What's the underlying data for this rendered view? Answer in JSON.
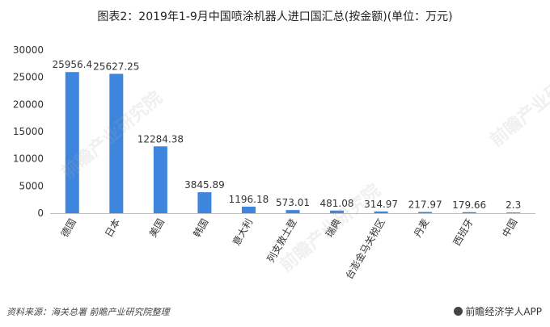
{
  "title": "图表2：2019年1-9月中国喷涂机器人进口国汇总(按金额)(单位：万元)",
  "footer": {
    "source": "资料来源：海关总署 前瞻产业研究院整理",
    "brand": "前瞻经济学人APP"
  },
  "watermark": "前瞻产业研究院",
  "colors": {
    "bar": "#3e85de",
    "axis": "#bfbfbf",
    "text": "#333333"
  },
  "chart_data": {
    "type": "bar",
    "title": "图表2：2019年1-9月中国喷涂机器人进口国汇总(按金额)(单位：万元)",
    "xlabel": "",
    "ylabel": "",
    "ylim": [
      0,
      30000
    ],
    "yticks": [
      0,
      5000,
      10000,
      15000,
      20000,
      25000,
      30000
    ],
    "grid": false,
    "categories": [
      "德国",
      "日本",
      "美国",
      "韩国",
      "意大利",
      "列支敦士登",
      "瑞典",
      "台澎金马关税区",
      "丹麦",
      "西班牙",
      "中国"
    ],
    "values": [
      25956.4,
      25627.25,
      12284.38,
      3845.89,
      1196.18,
      573.01,
      481.08,
      314.97,
      217.97,
      179.66,
      2.3
    ],
    "data_labels": [
      "25956.4",
      "25627.25",
      "12284.38",
      "3845.89",
      "1196.18",
      "573.01",
      "481.08",
      "314.97",
      "217.97",
      "179.66",
      "2.3"
    ]
  }
}
